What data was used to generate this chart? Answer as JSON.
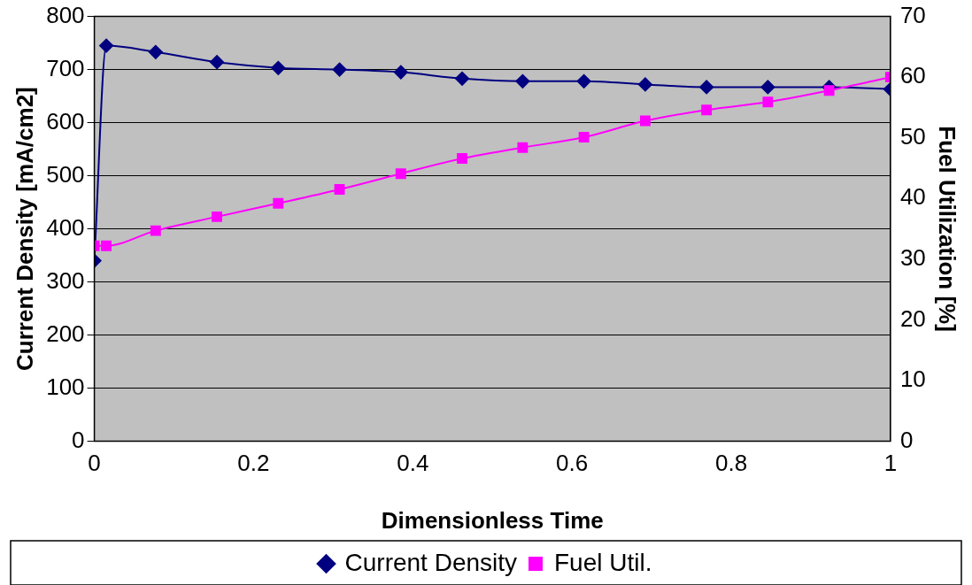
{
  "chart_data": {
    "type": "line",
    "xlabel": "Dimensionless Time",
    "ylabel": "Current Density [mA/cm2]",
    "y2label": "Fuel Utilization [%]",
    "x": [
      0,
      0.015,
      0.077,
      0.154,
      0.231,
      0.308,
      0.385,
      0.462,
      0.538,
      0.615,
      0.692,
      0.769,
      0.846,
      0.923,
      1.0
    ],
    "series": [
      {
        "name": "Current Density",
        "color": "#000080",
        "marker": "diamond",
        "values": [
          340,
          745,
          733,
          714,
          703,
          700,
          695,
          683,
          678,
          678,
          672,
          667,
          667,
          667,
          663
        ]
      },
      {
        "name": "Fuel Util.",
        "color": "#ff00ff",
        "marker": "square",
        "axis": "y2",
        "values": [
          32.2,
          32.2,
          34.7,
          37.0,
          39.2,
          41.5,
          44.1,
          46.6,
          48.4,
          50.1,
          52.8,
          54.6,
          55.9,
          57.8,
          60.0
        ]
      }
    ],
    "xlim": [
      0,
      1
    ],
    "xticks": [
      0,
      0.2,
      0.4,
      0.6,
      0.8,
      1
    ],
    "ylim": [
      0,
      800
    ],
    "yticks": [
      0,
      100,
      200,
      300,
      400,
      500,
      600,
      700,
      800
    ],
    "y2lim": [
      0,
      70
    ],
    "y2ticks": [
      0,
      10,
      20,
      30,
      40,
      50,
      60,
      70
    ],
    "grid": "y",
    "legend": "bottom"
  }
}
